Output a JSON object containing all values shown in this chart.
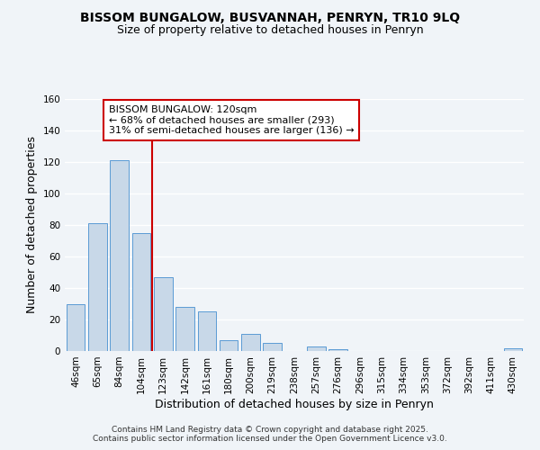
{
  "title": "BISSOM BUNGALOW, BUSVANNAH, PENRYN, TR10 9LQ",
  "subtitle": "Size of property relative to detached houses in Penryn",
  "xlabel": "Distribution of detached houses by size in Penryn",
  "ylabel": "Number of detached properties",
  "bar_color": "#c8d8e8",
  "bar_edge_color": "#5b9bd5",
  "background_color": "#f0f4f8",
  "grid_color": "#ffffff",
  "categories": [
    "46sqm",
    "65sqm",
    "84sqm",
    "104sqm",
    "123sqm",
    "142sqm",
    "161sqm",
    "180sqm",
    "200sqm",
    "219sqm",
    "238sqm",
    "257sqm",
    "276sqm",
    "296sqm",
    "315sqm",
    "334sqm",
    "353sqm",
    "372sqm",
    "392sqm",
    "411sqm",
    "430sqm"
  ],
  "values": [
    30,
    81,
    121,
    75,
    47,
    28,
    25,
    7,
    11,
    5,
    0,
    3,
    1,
    0,
    0,
    0,
    0,
    0,
    0,
    0,
    2
  ],
  "ylim": [
    0,
    160
  ],
  "yticks": [
    0,
    20,
    40,
    60,
    80,
    100,
    120,
    140,
    160
  ],
  "vline_color": "#cc0000",
  "annotation_title": "BISSOM BUNGALOW: 120sqm",
  "annotation_line1": "← 68% of detached houses are smaller (293)",
  "annotation_line2": "31% of semi-detached houses are larger (136) →",
  "annotation_box_color": "#ffffff",
  "annotation_border_color": "#cc0000",
  "footer_line1": "Contains HM Land Registry data © Crown copyright and database right 2025.",
  "footer_line2": "Contains public sector information licensed under the Open Government Licence v3.0.",
  "title_fontsize": 10,
  "subtitle_fontsize": 9,
  "axis_label_fontsize": 9,
  "tick_fontsize": 7.5,
  "annotation_fontsize": 8,
  "footer_fontsize": 6.5
}
